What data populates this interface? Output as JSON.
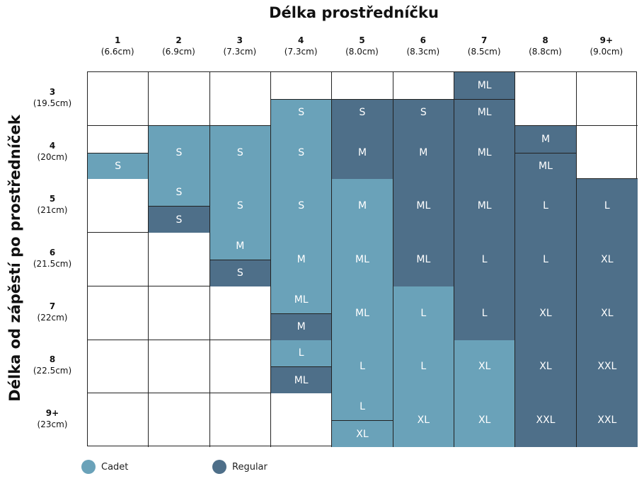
{
  "chart_data": {
    "type": "heatmap",
    "title": "Délka prostředníčku",
    "ylabel": "Délka od zápěstí po prostředníček",
    "columns": [
      {
        "num": "1",
        "cm": "(6.6cm)"
      },
      {
        "num": "2",
        "cm": "(6.9cm)"
      },
      {
        "num": "3",
        "cm": "(7.3cm)"
      },
      {
        "num": "4",
        "cm": "(7.3cm)"
      },
      {
        "num": "5",
        "cm": "(8.0cm)"
      },
      {
        "num": "6",
        "cm": "(8.3cm)"
      },
      {
        "num": "7",
        "cm": "(8.5cm)"
      },
      {
        "num": "8",
        "cm": "(8.8cm)"
      },
      {
        "num": "9+",
        "cm": "(9.0cm)"
      }
    ],
    "rows": [
      {
        "num": "3",
        "cm": "(19.5cm)"
      },
      {
        "num": "4",
        "cm": "(20cm)"
      },
      {
        "num": "5",
        "cm": "(21cm)"
      },
      {
        "num": "6",
        "cm": "(21.5cm)"
      },
      {
        "num": "7",
        "cm": "(22cm)"
      },
      {
        "num": "8",
        "cm": "(22.5cm)"
      },
      {
        "num": "9+",
        "cm": "(23cm)"
      }
    ],
    "cells": [
      [
        [],
        [],
        [],
        [
          {
            "s": "S",
            "t": "C"
          }
        ],
        [
          {
            "s": "S",
            "t": "R"
          }
        ],
        [
          {
            "s": "S",
            "t": "R"
          }
        ],
        [
          {
            "s": "ML",
            "t": "R"
          },
          {
            "s": "ML",
            "t": "R"
          }
        ],
        [],
        []
      ],
      [
        [
          {
            "s": "S",
            "t": "C"
          }
        ],
        [
          {
            "s": "S",
            "t": "C",
            "f": 1
          }
        ],
        [
          {
            "s": "S",
            "t": "C",
            "f": 1
          }
        ],
        [
          {
            "s": "S",
            "t": "C",
            "f": 1
          }
        ],
        [
          {
            "s": "M",
            "t": "R",
            "f": 1
          }
        ],
        [
          {
            "s": "M",
            "t": "R",
            "f": 1
          }
        ],
        [
          {
            "s": "ML",
            "t": "R",
            "f": 1
          }
        ],
        [
          {
            "s": "M",
            "t": "R"
          },
          {
            "s": "ML",
            "t": "R"
          }
        ],
        []
      ],
      [
        [],
        [
          {
            "s": "S",
            "t": "C"
          },
          {
            "s": "S",
            "t": "R"
          }
        ],
        [
          {
            "s": "S",
            "t": "C",
            "f": 1
          }
        ],
        [
          {
            "s": "S",
            "t": "C",
            "f": 1
          }
        ],
        [
          {
            "s": "M",
            "t": "C",
            "f": 1
          }
        ],
        [
          {
            "s": "ML",
            "t": "R",
            "f": 1
          }
        ],
        [
          {
            "s": "ML",
            "t": "R",
            "f": 1
          }
        ],
        [
          {
            "s": "L",
            "t": "R",
            "f": 1
          }
        ],
        [
          {
            "s": "L",
            "t": "R",
            "f": 1
          }
        ]
      ],
      [
        [],
        [],
        [
          {
            "s": "M",
            "t": "C"
          },
          {
            "s": "S",
            "t": "R"
          }
        ],
        [
          {
            "s": "M",
            "t": "C",
            "f": 1
          }
        ],
        [
          {
            "s": "ML",
            "t": "C",
            "f": 1
          }
        ],
        [
          {
            "s": "ML",
            "t": "R",
            "f": 1
          }
        ],
        [
          {
            "s": "L",
            "t": "R",
            "f": 1
          }
        ],
        [
          {
            "s": "L",
            "t": "R",
            "f": 1
          }
        ],
        [
          {
            "s": "XL",
            "t": "R",
            "f": 1
          }
        ]
      ],
      [
        [],
        [],
        [],
        [
          {
            "s": "ML",
            "t": "C"
          },
          {
            "s": "M",
            "t": "R"
          }
        ],
        [
          {
            "s": "ML",
            "t": "C",
            "f": 1
          }
        ],
        [
          {
            "s": "L",
            "t": "C",
            "f": 1
          }
        ],
        [
          {
            "s": "L",
            "t": "R",
            "f": 1
          }
        ],
        [
          {
            "s": "XL",
            "t": "R",
            "f": 1
          }
        ],
        [
          {
            "s": "XL",
            "t": "R",
            "f": 1
          }
        ]
      ],
      [
        [],
        [],
        [],
        [
          {
            "s": "L",
            "t": "C"
          },
          {
            "s": "ML",
            "t": "R"
          }
        ],
        [
          {
            "s": "L",
            "t": "C",
            "f": 1
          }
        ],
        [
          {
            "s": "L",
            "t": "C",
            "f": 1
          }
        ],
        [
          {
            "s": "XL",
            "t": "C",
            "f": 1
          }
        ],
        [
          {
            "s": "XL",
            "t": "R",
            "f": 1
          }
        ],
        [
          {
            "s": "XXL",
            "t": "R",
            "f": 1
          }
        ]
      ],
      [
        [],
        [],
        [],
        [],
        [
          {
            "s": "L",
            "t": "C"
          },
          {
            "s": "XL",
            "t": "C"
          }
        ],
        [
          {
            "s": "XL",
            "t": "C",
            "f": 1
          }
        ],
        [
          {
            "s": "XL",
            "t": "C",
            "f": 1
          }
        ],
        [
          {
            "s": "XXL",
            "t": "R",
            "f": 1
          }
        ],
        [
          {
            "s": "XXL",
            "t": "R",
            "f": 1
          }
        ]
      ]
    ],
    "legend": [
      {
        "key": "C",
        "label": "Cadet",
        "color": "#6aa2b9"
      },
      {
        "key": "R",
        "label": "Regular",
        "color": "#4e6f89"
      }
    ],
    "legend_position": "bottom-left"
  }
}
